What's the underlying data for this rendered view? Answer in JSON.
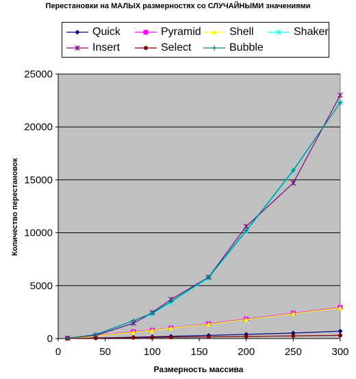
{
  "chart_data": {
    "type": "line",
    "title": "Перестановки на МАЛЫХ размерностях со СЛУЧАЙНЫМИ значениями",
    "xlabel": "Размерность массива",
    "ylabel": "Количество перестановок",
    "x": [
      10,
      40,
      80,
      100,
      120,
      160,
      200,
      250,
      300
    ],
    "xlim": [
      0,
      300
    ],
    "ylim": [
      0,
      25000
    ],
    "xticks": [
      0,
      50,
      100,
      150,
      200,
      250,
      300
    ],
    "yticks": [
      0,
      5000,
      10000,
      15000,
      20000,
      25000
    ],
    "grid": "horizontal",
    "legend_position": "top",
    "plot_background": "#c0c0c0",
    "series": [
      {
        "name": "Quick",
        "color": "#000080",
        "marker": "diamond",
        "values": [
          10,
          60,
          120,
          160,
          210,
          300,
          400,
          520,
          700
        ]
      },
      {
        "name": "Pyramid",
        "color": "#ff00ff",
        "marker": "square",
        "values": [
          20,
          250,
          650,
          800,
          1000,
          1400,
          1850,
          2400,
          2950
        ]
      },
      {
        "name": "Shell",
        "color": "#ffff00",
        "marker": "triangle",
        "values": [
          20,
          230,
          600,
          770,
          980,
          1350,
          1800,
          2350,
          2900
        ]
      },
      {
        "name": "Shaker",
        "color": "#00ffff",
        "marker": "x",
        "values": [
          30,
          350,
          1500,
          2300,
          3400,
          5700,
          10100,
          15800,
          22300
        ]
      },
      {
        "name": "Insert",
        "color": "#800080",
        "marker": "star",
        "values": [
          40,
          300,
          1450,
          2450,
          3700,
          5800,
          10600,
          14700,
          23000
        ]
      },
      {
        "name": "Select",
        "color": "#800000",
        "marker": "circle",
        "values": [
          5,
          40,
          80,
          100,
          120,
          160,
          200,
          250,
          300
        ]
      },
      {
        "name": "Bubble",
        "color": "#008080",
        "marker": "plus",
        "values": [
          30,
          380,
          1700,
          2400,
          3500,
          5800,
          10200,
          15900,
          22300
        ]
      }
    ]
  }
}
